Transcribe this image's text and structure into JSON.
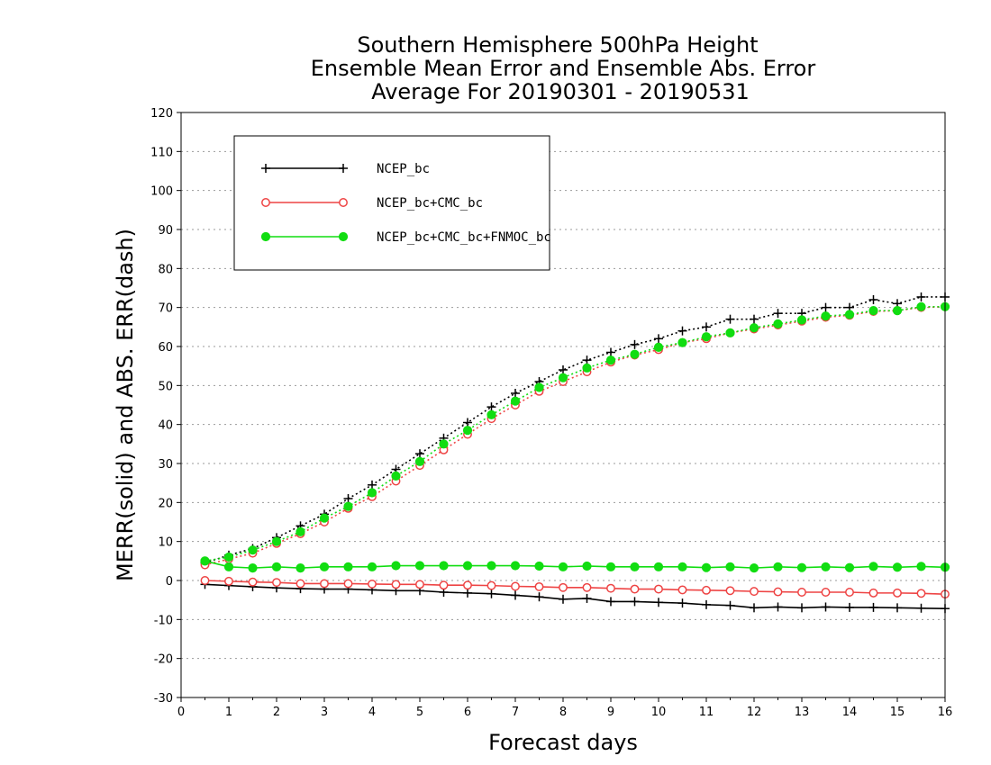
{
  "chart_data": {
    "type": "line",
    "title": [
      "Southern Hemisphere 500hPa Height",
      "Ensemble Mean Error and Ensemble Abs. Error",
      "Average For 20190301 - 20190531"
    ],
    "xlabel": "Forecast days",
    "ylabel": "MERR(solid) and ABS. ERR(dash)",
    "xlim": [
      0,
      16
    ],
    "ylim": [
      -30,
      120
    ],
    "xticks": [
      0,
      1,
      2,
      3,
      4,
      5,
      6,
      7,
      8,
      9,
      10,
      11,
      12,
      13,
      14,
      15,
      16
    ],
    "yticks": [
      -30,
      -20,
      -10,
      0,
      10,
      20,
      30,
      40,
      50,
      60,
      70,
      80,
      90,
      100,
      110,
      120
    ],
    "grid": true,
    "legend_placement": "top-left",
    "x": [
      0.5,
      1,
      1.5,
      2,
      2.5,
      3,
      3.5,
      4,
      4.5,
      5,
      5.5,
      6,
      6.5,
      7,
      7.5,
      8,
      8.5,
      9,
      9.5,
      10,
      10.5,
      11,
      11.5,
      12,
      12.5,
      13,
      13.5,
      14,
      14.5,
      15,
      15.5,
      16
    ],
    "series": [
      {
        "name": "NCEP_bc",
        "color": "#000000",
        "marker": "plus",
        "merr": [
          -1,
          -1.3,
          -1.6,
          -1.9,
          -2.1,
          -2.2,
          -2.2,
          -2.4,
          -2.6,
          -2.6,
          -3,
          -3.2,
          -3.4,
          -3.8,
          -4.2,
          -4.8,
          -4.6,
          -5.4,
          -5.4,
          -5.6,
          -5.8,
          -6.2,
          -6.4,
          -7,
          -6.8,
          -7,
          -6.8,
          -6.9,
          -6.9,
          -7,
          -7.1,
          -7.2
        ],
        "abs_err": [
          4.5,
          6.5,
          8.2,
          11,
          14,
          17,
          21,
          24.5,
          28.5,
          32.5,
          36.5,
          40.5,
          44.5,
          48,
          51,
          54,
          56.5,
          58.5,
          60.5,
          62,
          64,
          65,
          67,
          67,
          68.5,
          68.5,
          70,
          70,
          72,
          71,
          72.7,
          72.7
        ]
      },
      {
        "name": "NCEP_bc+CMC_bc",
        "color": "#ee4444",
        "marker": "open-circle",
        "merr": [
          0,
          -0.2,
          -0.4,
          -0.5,
          -0.8,
          -0.8,
          -0.8,
          -0.9,
          -1,
          -1,
          -1.2,
          -1.2,
          -1.3,
          -1.5,
          -1.6,
          -1.8,
          -1.8,
          -2,
          -2.2,
          -2.2,
          -2.4,
          -2.5,
          -2.6,
          -2.8,
          -2.9,
          -3,
          -3,
          -3,
          -3.2,
          -3.2,
          -3.3,
          -3.5
        ],
        "abs_err": [
          4,
          5.5,
          7,
          9.5,
          12,
          15,
          18.5,
          21.5,
          25.5,
          29.5,
          33.5,
          37.5,
          41.5,
          45,
          48.5,
          51,
          53.5,
          56,
          57.8,
          59.2,
          61,
          62,
          63.5,
          64.5,
          65.5,
          66.5,
          67.5,
          68,
          69,
          69.2,
          70,
          70.2
        ]
      },
      {
        "name": "NCEP_bc+CMC_bc+FNMOC_bc",
        "color": "#11dd11",
        "marker": "filled-circle",
        "merr": [
          5,
          3.5,
          3.2,
          3.5,
          3.2,
          3.5,
          3.5,
          3.5,
          3.8,
          3.8,
          3.8,
          3.8,
          3.8,
          3.8,
          3.7,
          3.5,
          3.7,
          3.5,
          3.5,
          3.5,
          3.5,
          3.3,
          3.5,
          3.2,
          3.5,
          3.3,
          3.5,
          3.3,
          3.6,
          3.4,
          3.6,
          3.4
        ],
        "abs_err": [
          5,
          6,
          7.8,
          10,
          12.5,
          16,
          19,
          22.5,
          26.8,
          30.5,
          35,
          38.5,
          42.5,
          46,
          49.5,
          52,
          54.5,
          56.5,
          58,
          59.8,
          61,
          62.5,
          63.5,
          64.8,
          65.8,
          66.8,
          67.8,
          68.2,
          69.2,
          69.2,
          70.2,
          70.2
        ]
      }
    ]
  }
}
